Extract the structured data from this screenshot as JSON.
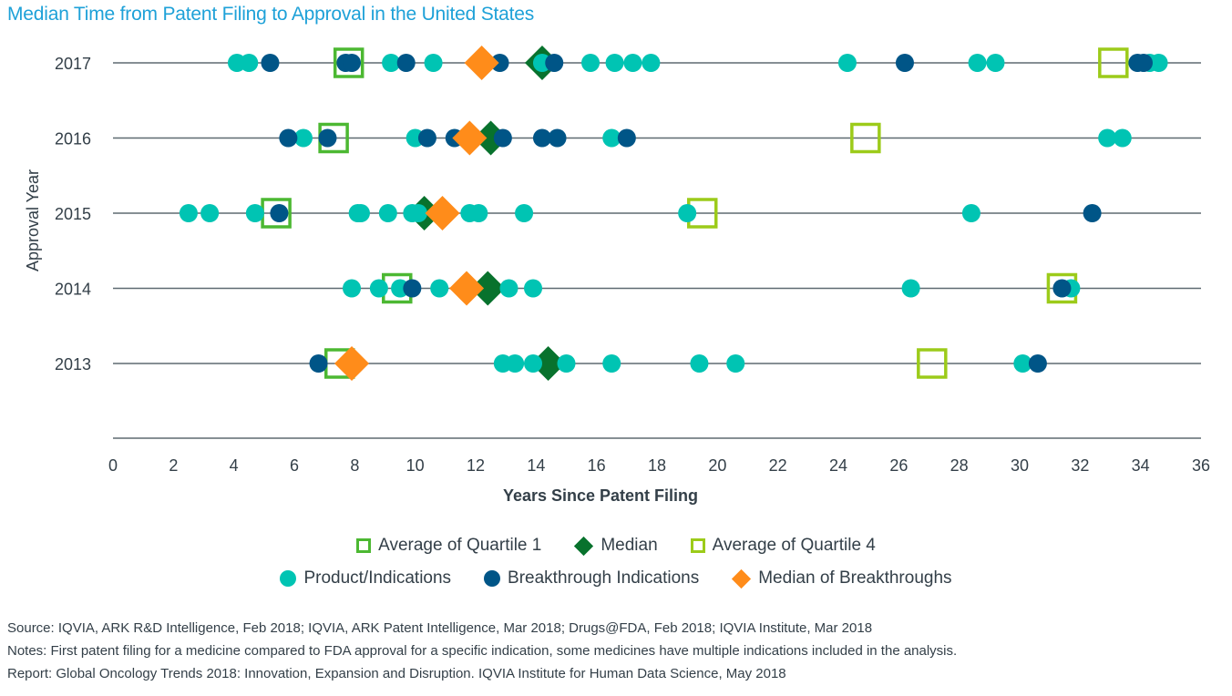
{
  "title": "Median Time from Patent Filing to Approval in the United States",
  "colors": {
    "title": "#1ea1d8",
    "product": "#00c4b3",
    "breakthrough": "#005587",
    "median": "#08722d",
    "median_breakthrough": "#ff8c1a",
    "quartile1": "#4cb832",
    "quartile4": "#9ccb1a",
    "gridline": "#5e6a71"
  },
  "legend": {
    "quartile1": "Average of Quartile 1",
    "median": "Median",
    "quartile4": "Average of Quartile 4",
    "product": "Product/Indications",
    "breakthrough": "Breakthrough Indications",
    "median_breakthrough": "Median of Breakthroughs"
  },
  "footnotes": {
    "source": "Source: IQVIA, ARK R&D Intelligence, Feb 2018; IQVIA, ARK Patent Intelligence, Mar 2018; Drugs@FDA, Feb 2018; IQVIA Institute, Mar 2018",
    "notes": "Notes: First patent filing for a medicine compared to FDA approval for a specific indication, some medicines have multiple indications included in the analysis.",
    "report": "Report: Global Oncology Trends 2018: Innovation, Expansion and Disruption. IQVIA Institute for Human Data Science, May 2018"
  },
  "chart_data": {
    "type": "scatter",
    "title": "Median Time from Patent Filing to Approval in the United States",
    "xlabel": "Years Since Patent Filing",
    "ylabel": "Approval Year",
    "xlim": [
      0,
      36
    ],
    "xticks": [
      "0",
      "2",
      "4",
      "6",
      "8",
      "10",
      "12",
      "14",
      "16",
      "18",
      "20",
      "22",
      "24",
      "26",
      "28",
      "30",
      "32",
      "34",
      "36"
    ],
    "categories": [
      "2017",
      "2016",
      "2015",
      "2014",
      "2013"
    ],
    "grid": "horizontal",
    "legend_position": "bottom",
    "rows": [
      {
        "year": "2017",
        "product": [
          4.1,
          4.5,
          9.2,
          10.6,
          14.2,
          15.8,
          16.6,
          17.2,
          17.8,
          24.3,
          28.6,
          29.2,
          34.3,
          34.6
        ],
        "breakthrough": [
          5.2,
          7.7,
          7.9,
          9.7,
          12.8,
          14.6,
          26.2,
          33.9,
          34.1
        ],
        "quartile1_avg": 7.8,
        "median": 14.2,
        "quartile4_avg": 33.1,
        "median_breakthrough": 12.2
      },
      {
        "year": "2016",
        "product": [
          6.3,
          10.0,
          16.5,
          32.9,
          33.4
        ],
        "breakthrough": [
          5.8,
          7.1,
          10.4,
          11.3,
          12.9,
          14.2,
          14.7,
          17.0
        ],
        "quartile1_avg": 7.3,
        "median": 12.5,
        "quartile4_avg": 24.9,
        "median_breakthrough": 11.8
      },
      {
        "year": "2015",
        "product": [
          2.5,
          3.2,
          4.7,
          8.1,
          8.2,
          9.1,
          9.9,
          10.1,
          11.8,
          12.1,
          13.6,
          19.0,
          28.4
        ],
        "breakthrough": [
          5.5,
          32.4
        ],
        "quartile1_avg": 5.4,
        "median": 10.3,
        "quartile4_avg": 19.5,
        "median_breakthrough": 10.9
      },
      {
        "year": "2014",
        "product": [
          7.9,
          8.8,
          9.5,
          10.8,
          13.1,
          13.9,
          26.4,
          31.7
        ],
        "breakthrough": [
          9.9,
          31.4
        ],
        "quartile1_avg": 9.4,
        "median": 12.4,
        "quartile4_avg": 31.4,
        "median_breakthrough": 11.7
      },
      {
        "year": "2013",
        "product": [
          12.9,
          13.3,
          13.9,
          15.0,
          16.5,
          19.4,
          20.6,
          30.1
        ],
        "breakthrough": [
          6.8,
          30.6
        ],
        "quartile1_avg": 7.5,
        "median": 14.4,
        "quartile4_avg": 27.1,
        "median_breakthrough": 7.9
      }
    ]
  }
}
